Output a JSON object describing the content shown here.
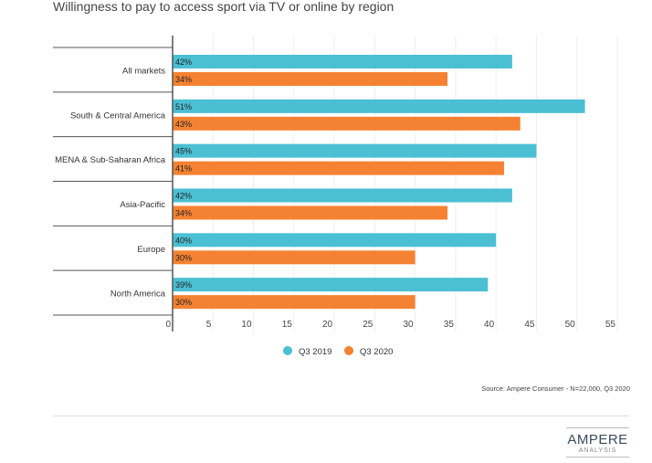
{
  "chart_data": {
    "type": "bar",
    "orientation": "horizontal",
    "title": "Willingness to pay to access sport via TV or online by region",
    "categories": [
      "All markets",
      "South & Central America",
      "MENA & Sub-Saharan Africa",
      "Asia-Pacific",
      "Europe",
      "North America"
    ],
    "series": [
      {
        "name": "Q3 2019",
        "color": "#4bbfd3",
        "values": [
          42,
          51,
          45,
          42,
          40,
          39
        ],
        "labels": [
          "42%",
          "51%",
          "45%",
          "42%",
          "40%",
          "39%"
        ]
      },
      {
        "name": "Q3 2020",
        "color": "#f58232",
        "values": [
          34,
          43,
          41,
          34,
          30,
          30
        ],
        "labels": [
          "34%",
          "43%",
          "41%",
          "34%",
          "30%",
          "30%"
        ]
      }
    ],
    "xlim": [
      0,
      55
    ],
    "xticks": [
      "0",
      "5",
      "10",
      "15",
      "20",
      "25",
      "30",
      "35",
      "40",
      "45",
      "50",
      "55"
    ],
    "grid": true,
    "legend": "bottom"
  },
  "source": "Source: Ampere Consumer - N=22,000, Q3 2020",
  "logo": {
    "line1": "AMPERE",
    "line2": "ANALYSIS"
  }
}
